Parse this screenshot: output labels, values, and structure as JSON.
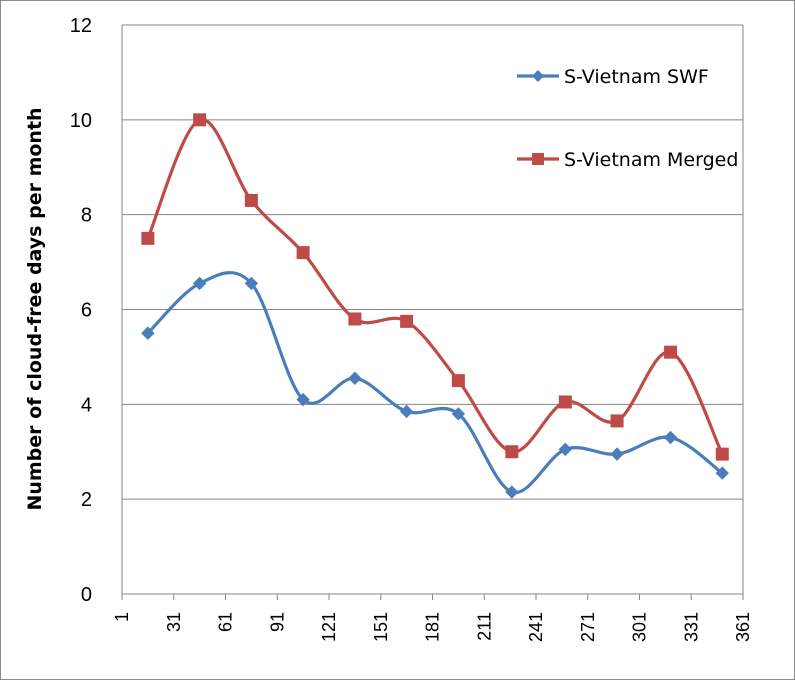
{
  "chart_data": {
    "type": "line",
    "xlabel": "",
    "ylabel": "Number of cloud-free days per month",
    "xlim": [
      1,
      361
    ],
    "ylim": [
      0,
      12
    ],
    "x_ticks": [
      "1",
      "31",
      "61",
      "91",
      "121",
      "151",
      "181",
      "211",
      "241",
      "271",
      "301",
      "331",
      "361"
    ],
    "y_ticks": [
      "0",
      "2",
      "4",
      "6",
      "8",
      "10",
      "12"
    ],
    "grid": "horizontal",
    "legend_position": "top-right",
    "series": [
      {
        "name": "S-Vietnam SWF",
        "color": "#4a7ebb",
        "marker": "diamond",
        "x": [
          16,
          46,
          76,
          106,
          136,
          166,
          196,
          227,
          258,
          288,
          319,
          349
        ],
        "y": [
          5.5,
          6.55,
          6.55,
          4.1,
          4.55,
          3.85,
          3.8,
          2.15,
          3.05,
          2.95,
          3.3,
          2.55
        ]
      },
      {
        "name": "S-Vietnam Merged",
        "color": "#be4b48",
        "marker": "square",
        "x": [
          16,
          46,
          76,
          106,
          136,
          166,
          196,
          227,
          258,
          288,
          319,
          349
        ],
        "y": [
          7.5,
          10.0,
          8.3,
          7.2,
          5.8,
          5.75,
          4.5,
          3.0,
          4.05,
          3.65,
          5.1,
          2.95
        ]
      }
    ]
  }
}
